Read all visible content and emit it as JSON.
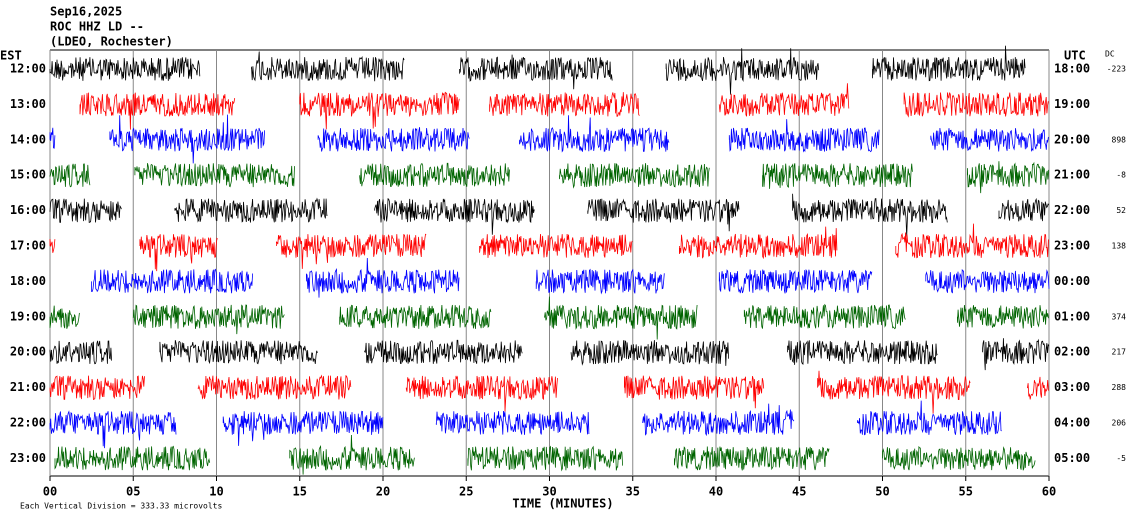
{
  "chart_data": {
    "type": "helicorder",
    "title_lines": [
      "Sep16,2025",
      "ROC HHZ LD --",
      "(LDEO, Rochester)"
    ],
    "left_axis_label": "EST",
    "right_axis_label": "UTC",
    "dc_label": "DC",
    "xlabel": "TIME (MINUTES)",
    "footer": "Each Vertical Division =  333.33 microvolts",
    "xlim": [
      0,
      60
    ],
    "xticks": [
      {
        "value": 0,
        "label": "00"
      },
      {
        "value": 5,
        "label": "05"
      },
      10,
      15,
      20,
      25,
      30,
      35,
      40,
      45,
      50,
      55,
      60
    ],
    "grid": true,
    "rows": [
      {
        "est": "12:00",
        "utc": "18:00",
        "dc": -223,
        "color": "#000000",
        "segments": [
          [
            0,
            9
          ],
          [
            12.1,
            21.3
          ],
          [
            24.6,
            33.8
          ],
          [
            37,
            46.2
          ],
          [
            49.4,
            58.6
          ]
        ]
      },
      {
        "est": "13:00",
        "utc": "19:00",
        "color": "#ff0000",
        "segments": [
          [
            1.8,
            11.1
          ],
          [
            15,
            24.6
          ],
          [
            26.4,
            35.4
          ],
          [
            40.2,
            48
          ],
          [
            51.3,
            60
          ]
        ]
      },
      {
        "est": "14:00",
        "utc": "20:00",
        "dc": 898,
        "color": "#0000ff",
        "segments": [
          [
            0,
            0.3
          ],
          [
            3.6,
            12.9
          ],
          [
            16.1,
            25.2
          ],
          [
            28.2,
            37.2
          ],
          [
            40.8,
            49.8
          ],
          [
            52.9,
            60
          ]
        ]
      },
      {
        "est": "15:00",
        "utc": "21:00",
        "dc": -8,
        "color": "#006400",
        "segments": [
          [
            0,
            2.4
          ],
          [
            5.1,
            14.7
          ],
          [
            18.6,
            27.6
          ],
          [
            30.6,
            39.6
          ],
          [
            42.8,
            51.8
          ],
          [
            55.1,
            60
          ]
        ]
      },
      {
        "est": "16:00",
        "utc": "22:00",
        "dc": 52,
        "color": "#000000",
        "segments": [
          [
            0,
            4.3
          ],
          [
            7.5,
            16.7
          ],
          [
            19.5,
            29.1
          ],
          [
            32.3,
            41.4
          ],
          [
            44.6,
            53.9
          ],
          [
            57,
            60
          ]
        ]
      },
      {
        "est": "17:00",
        "utc": "23:00",
        "dc": 138,
        "color": "#ff0000",
        "segments": [
          [
            0,
            0.3
          ],
          [
            5.4,
            10.1
          ],
          [
            13.6,
            22.6
          ],
          [
            25.8,
            35
          ],
          [
            37.8,
            47.3
          ],
          [
            50.8,
            60
          ]
        ]
      },
      {
        "est": "18:00",
        "utc": "00:00",
        "color": "#0000ff",
        "segments": [
          [
            2.5,
            12.2
          ],
          [
            15.4,
            24.6
          ],
          [
            29.2,
            36.9
          ],
          [
            40.2,
            49.4
          ],
          [
            52.6,
            60
          ]
        ]
      },
      {
        "est": "19:00",
        "utc": "01:00",
        "dc": 374,
        "color": "#006400",
        "segments": [
          [
            0,
            1.8
          ],
          [
            5,
            14.1
          ],
          [
            17.4,
            26.5
          ],
          [
            29.7,
            38.9
          ],
          [
            41.7,
            51.4
          ],
          [
            54.5,
            60
          ]
        ]
      },
      {
        "est": "20:00",
        "utc": "02:00",
        "dc": 217,
        "color": "#000000",
        "segments": [
          [
            0,
            3.7
          ],
          [
            6.6,
            16.1
          ],
          [
            18.9,
            28.4
          ],
          [
            31.3,
            40.8
          ],
          [
            44.3,
            53.3
          ],
          [
            56,
            60
          ]
        ]
      },
      {
        "est": "21:00",
        "utc": "03:00",
        "dc": 288,
        "color": "#ff0000",
        "segments": [
          [
            0,
            5.7
          ],
          [
            8.9,
            18.1
          ],
          [
            21.4,
            30.5
          ],
          [
            34.5,
            42.9
          ],
          [
            46.1,
            55.3
          ],
          [
            58.7,
            60
          ]
        ]
      },
      {
        "est": "22:00",
        "utc": "04:00",
        "dc": 206,
        "color": "#0000ff",
        "segments": [
          [
            0,
            7.6
          ],
          [
            10.4,
            20
          ],
          [
            23.2,
            32.4
          ],
          [
            35.6,
            44.7
          ],
          [
            48.5,
            57.2
          ]
        ]
      },
      {
        "est": "23:00",
        "utc": "05:00",
        "dc": -5,
        "color": "#006400",
        "segments": [
          [
            0.3,
            9.6
          ],
          [
            14.4,
            21.9
          ],
          [
            25.1,
            34.4
          ],
          [
            37.5,
            46.8
          ],
          [
            50,
            59.2
          ]
        ]
      }
    ]
  }
}
